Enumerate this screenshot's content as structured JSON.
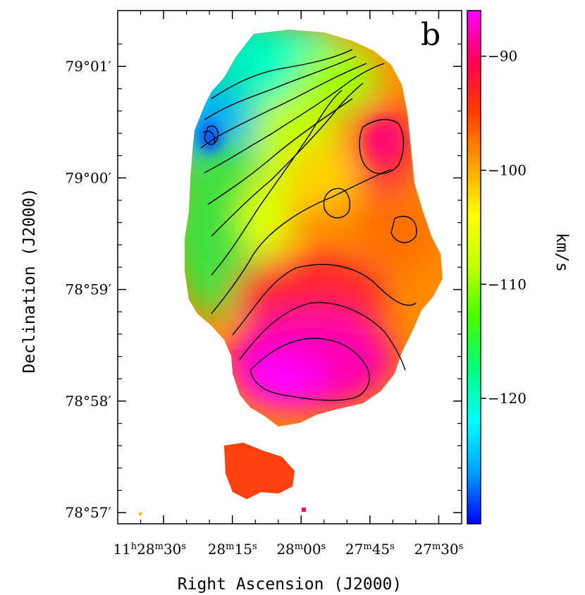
{
  "chart_data": {
    "type": "heatmap",
    "panel_label": "b",
    "xlabel": "Right Ascension (J2000)",
    "ylabel": "Declination (J2000)",
    "x_ticks": [
      {
        "label_html": "11<tspan baseline-shift='super' font-size='13'>h</tspan>28<tspan baseline-shift='super' font-size='13'>m</tspan>30<tspan baseline-shift='super' font-size='13'>s</tspan>",
        "text": "11h28m30s",
        "value_s": 30
      },
      {
        "label_html": "28<tspan baseline-shift='super' font-size='13'>m</tspan>15<tspan baseline-shift='super' font-size='13'>s</tspan>",
        "text": "28m15s",
        "value_s": 15
      },
      {
        "label_html": "28<tspan baseline-shift='super' font-size='13'>m</tspan>00<tspan baseline-shift='super' font-size='13'>s</tspan>",
        "text": "28m00s",
        "value_s": 0
      },
      {
        "label_html": "27<tspan baseline-shift='super' font-size='13'>m</tspan>45<tspan baseline-shift='super' font-size='13'>s</tspan>",
        "text": "27m45s",
        "value_s": -15
      },
      {
        "label_html": "27<tspan baseline-shift='super' font-size='13'>m</tspan>30<tspan baseline-shift='super' font-size='13'>s</tspan>",
        "text": "27m30s",
        "value_s": -30
      }
    ],
    "y_ticks": [
      {
        "label": "79°01′",
        "value_arcmin": 1
      },
      {
        "label": "79°00′",
        "value_arcmin": 0
      },
      {
        "label": "78°59′",
        "value_arcmin": -1
      },
      {
        "label": "78°58′",
        "value_arcmin": -2
      },
      {
        "label": "78°57′",
        "value_arcmin": -3
      }
    ],
    "xlim_s": [
      40,
      -35
    ],
    "ylim_arcmin": [
      -3.1,
      1.5
    ],
    "colorbar": {
      "label": "km/s",
      "ticks": [
        -90,
        -100,
        -110,
        -120
      ],
      "range": [
        -131,
        -86
      ],
      "colormap": [
        "#0000ff",
        "#00a0ff",
        "#00ffff",
        "#00ff80",
        "#40ff00",
        "#c0ff00",
        "#ffff00",
        "#ffa000",
        "#ff4000",
        "#ff0050",
        "#ff00ff"
      ]
    },
    "velocity_field_description_values": {
      "north_west_min": -125,
      "south_centre_max": -88,
      "south_knot": -97
    }
  }
}
